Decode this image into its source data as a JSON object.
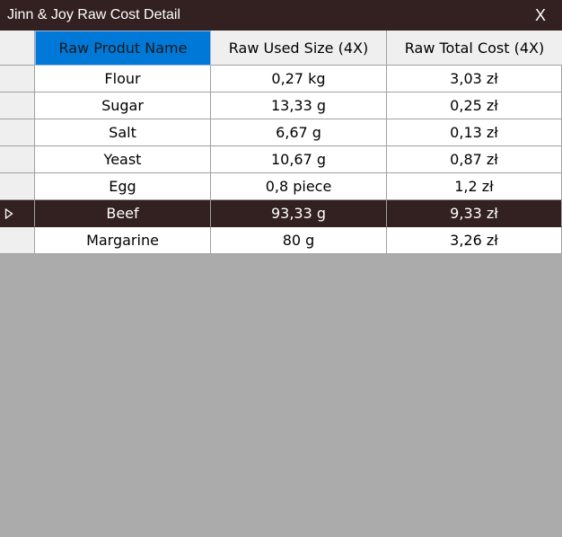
{
  "window": {
    "title": "Jinn & Joy Raw Cost Detail",
    "close_label": "X"
  },
  "columns": [
    "Raw Produt Name",
    "Raw Used Size (4X)",
    "Raw Total Cost (4X)"
  ],
  "rows": [
    [
      "Flour",
      "0,27 kg",
      "3,03 zł"
    ],
    [
      "Sugar",
      "13,33 g",
      "0,25 zł"
    ],
    [
      "Salt",
      "6,67 g",
      "0,13 zł"
    ],
    [
      "Yeast",
      "10,67 g",
      "0,87 zł"
    ],
    [
      "Egg",
      "0,8 piece",
      "1,2 zł"
    ],
    [
      "Beef",
      "93,33 g",
      "9,33 zł"
    ],
    [
      "Margarine",
      "80 g",
      "3,26 zł"
    ]
  ],
  "selected_row": 5,
  "colors": {
    "titlebar": "#332020",
    "selection": "#332020",
    "header_active": "#0078d7",
    "empty_area": "#ababab"
  }
}
